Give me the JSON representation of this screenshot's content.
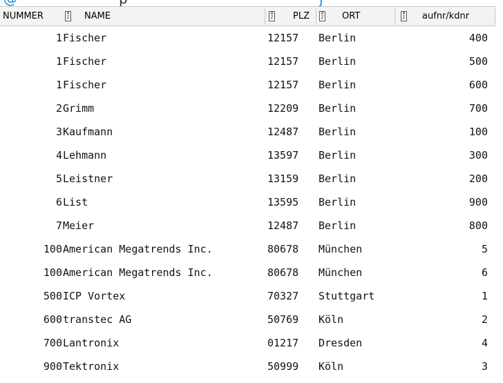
{
  "header_strip": {
    "frag_a": "@",
    "frag_b": "p",
    "frag_c": "j"
  },
  "columns": [
    {
      "label": "NUMMER"
    },
    {
      "label": "NAME"
    },
    {
      "label": "PLZ"
    },
    {
      "label": "ORT"
    },
    {
      "label": "aufnr/kdnr"
    }
  ],
  "rows": [
    {
      "nummer": "1",
      "name": "Fischer",
      "plz": "12157",
      "ort": "Berlin",
      "aufnr": "400"
    },
    {
      "nummer": "1",
      "name": "Fischer",
      "plz": "12157",
      "ort": "Berlin",
      "aufnr": "500"
    },
    {
      "nummer": "1",
      "name": "Fischer",
      "plz": "12157",
      "ort": "Berlin",
      "aufnr": "600"
    },
    {
      "nummer": "2",
      "name": "Grimm",
      "plz": "12209",
      "ort": "Berlin",
      "aufnr": "700"
    },
    {
      "nummer": "3",
      "name": "Kaufmann",
      "plz": "12487",
      "ort": "Berlin",
      "aufnr": "100"
    },
    {
      "nummer": "4",
      "name": "Lehmann",
      "plz": "13597",
      "ort": "Berlin",
      "aufnr": "300"
    },
    {
      "nummer": "5",
      "name": "Leistner",
      "plz": "13159",
      "ort": "Berlin",
      "aufnr": "200"
    },
    {
      "nummer": "6",
      "name": "List",
      "plz": "13595",
      "ort": "Berlin",
      "aufnr": "900"
    },
    {
      "nummer": "7",
      "name": "Meier",
      "plz": "12487",
      "ort": "Berlin",
      "aufnr": "800"
    },
    {
      "nummer": "100",
      "name": "American Megatrends Inc.",
      "plz": "80678",
      "ort": "München",
      "aufnr": "5"
    },
    {
      "nummer": "100",
      "name": "American Megatrends Inc.",
      "plz": "80678",
      "ort": "München",
      "aufnr": "6"
    },
    {
      "nummer": "500",
      "name": "ICP Vortex",
      "plz": "70327",
      "ort": "Stuttgart",
      "aufnr": "1"
    },
    {
      "nummer": "600",
      "name": "transtec AG",
      "plz": "50769",
      "ort": "Köln",
      "aufnr": "2"
    },
    {
      "nummer": "700",
      "name": "Lantronix",
      "plz": "01217",
      "ort": "Dresden",
      "aufnr": "4"
    },
    {
      "nummer": "900",
      "name": "Tektronix",
      "plz": "50999",
      "ort": "Köln",
      "aufnr": "3"
    }
  ],
  "icons": {
    "sort": "sort-az-icon"
  }
}
